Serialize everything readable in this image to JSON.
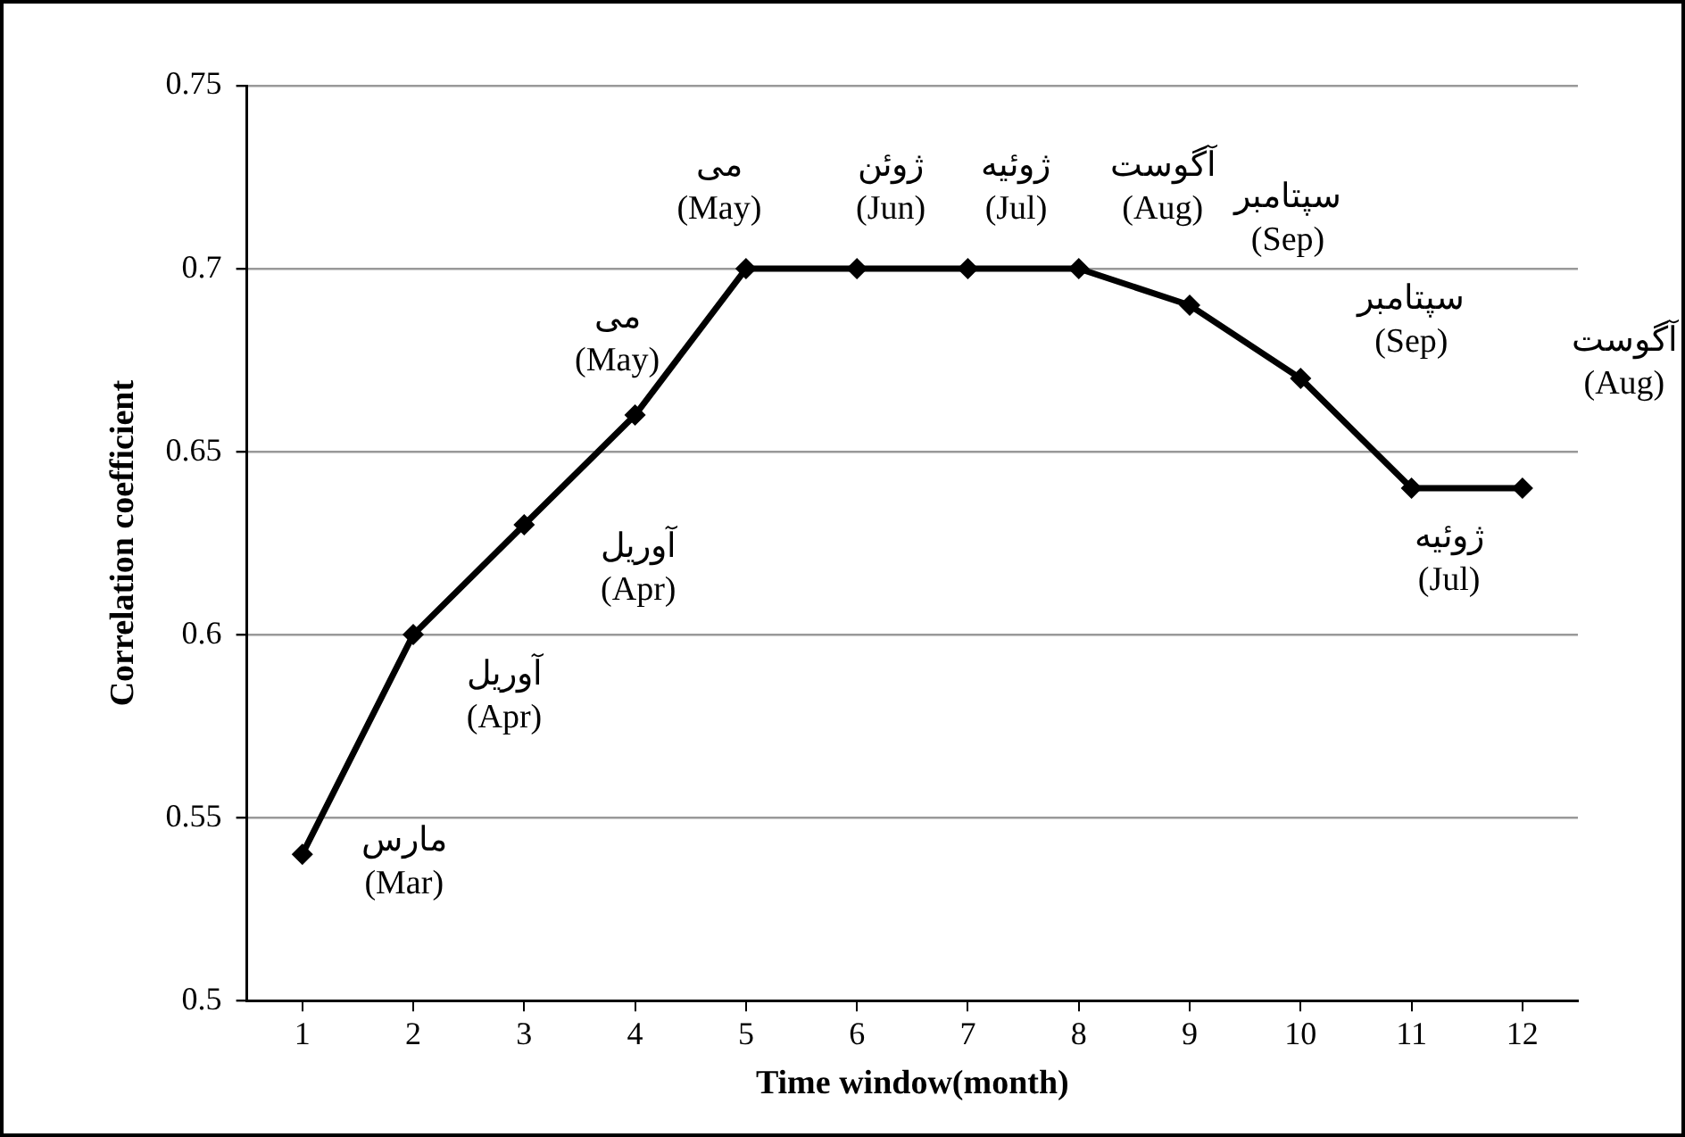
{
  "chart_data": {
    "type": "line",
    "xlabel": "Time window(month)",
    "ylabel": "Correlation coefficient",
    "x": [
      1,
      2,
      3,
      4,
      5,
      6,
      7,
      8,
      9,
      10,
      11,
      12
    ],
    "series": [
      {
        "color": "#000000",
        "values": [
          0.54,
          0.6,
          0.63,
          0.66,
          0.7,
          0.7,
          0.7,
          0.7,
          0.69,
          0.67,
          0.64,
          0.64
        ]
      }
    ],
    "xlim": [
      0.5,
      12.5
    ],
    "xticks": [
      1,
      2,
      3,
      4,
      5,
      6,
      7,
      8,
      9,
      10,
      11,
      12
    ],
    "ylim": [
      0.5,
      0.75
    ],
    "yticks": [
      0.5,
      0.55,
      0.6,
      0.65,
      0.7,
      0.75
    ],
    "grid": "y",
    "marker": "diamond",
    "line_style": "solid",
    "legend": false,
    "annotations": [
      {
        "text": "مارس\n(Mar)",
        "x": 1,
        "y": 0.54
      },
      {
        "text": "آوریل\n(Apr)",
        "x": 2,
        "y": 0.6
      },
      {
        "text": "آوریل\n(Apr)",
        "x": 3,
        "y": 0.63
      },
      {
        "text": "می\n(May)",
        "x": 4,
        "y": 0.66
      },
      {
        "text": "می\n(May)",
        "x": 5,
        "y": 0.7
      },
      {
        "text": "ژوئن\n(Jun)",
        "x": 6,
        "y": 0.7
      },
      {
        "text": "ژوئیه\n(Jul)",
        "x": 7,
        "y": 0.7
      },
      {
        "text": "آگوست\n(Aug)",
        "x": 8,
        "y": 0.7
      },
      {
        "text": "سپتامبر\n(Sep)",
        "x": 9,
        "y": 0.69
      },
      {
        "text": "سپتامبر\n(Sep)",
        "x": 10,
        "y": 0.67
      },
      {
        "text": "ژوئیه\n(Jul)",
        "x": 11,
        "y": 0.64
      },
      {
        "text": "آگوست\n(Aug)",
        "x": 12,
        "y": 0.64
      }
    ]
  }
}
